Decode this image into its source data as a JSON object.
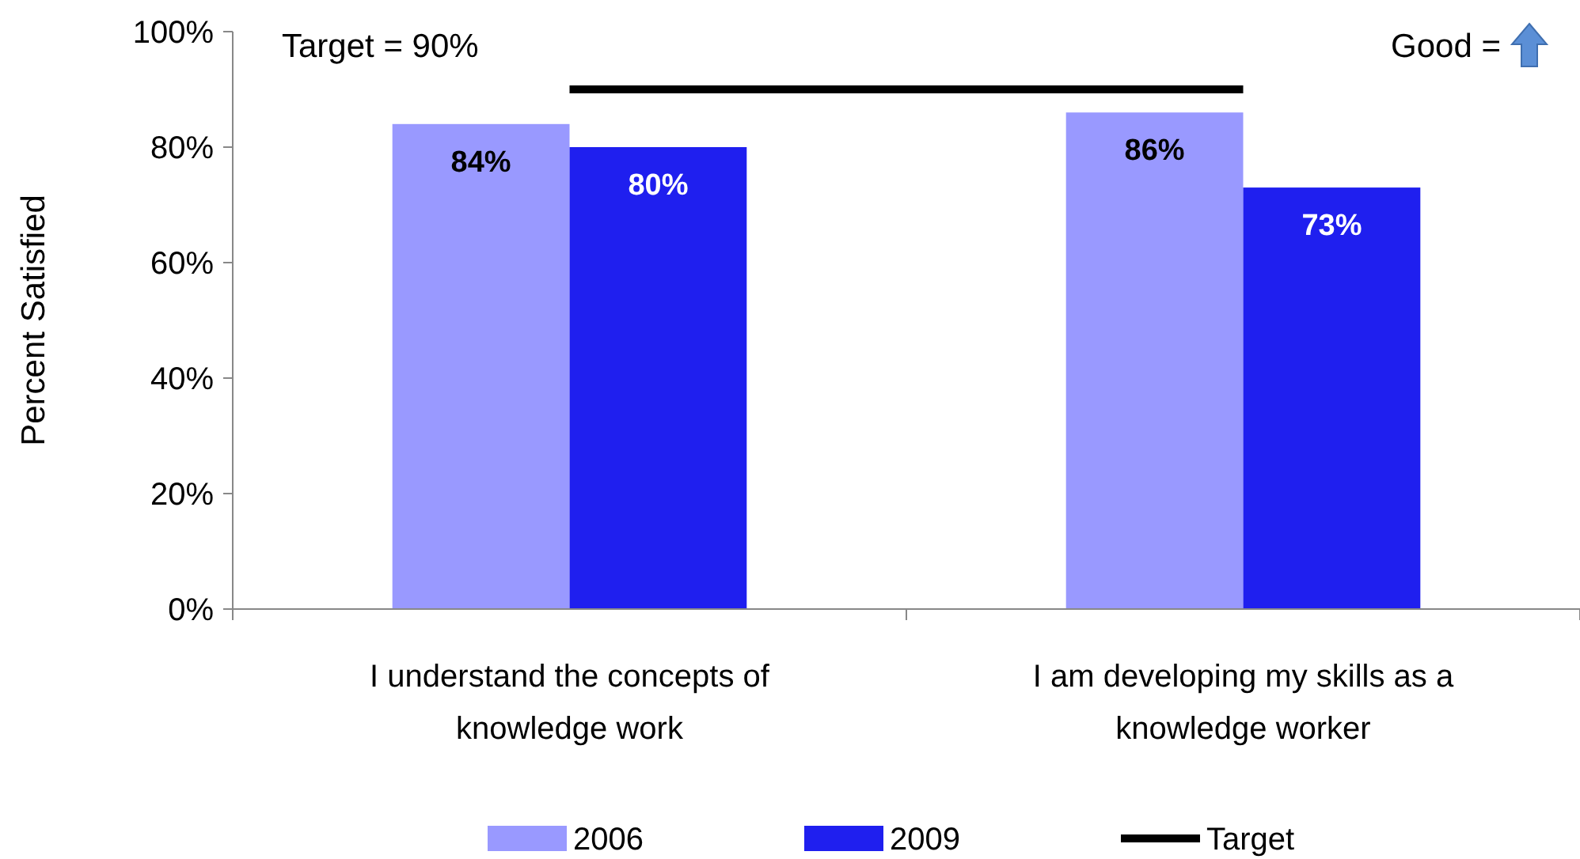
{
  "chart_data": {
    "type": "bar",
    "ylabel": "Percent Satisfied",
    "categories": [
      "I understand the concepts of knowledge work",
      "I am developing my skills as a knowledge worker"
    ],
    "series": [
      {
        "name": "2006",
        "color": "#9999ff",
        "values": [
          84,
          86
        ],
        "value_labels": [
          "84%",
          "86%"
        ]
      },
      {
        "name": "2009",
        "color": "#1f1fef",
        "values": [
          80,
          73
        ],
        "value_labels": [
          "80%",
          "73%"
        ]
      },
      {
        "name": "Target",
        "type": "line",
        "color": "#000000",
        "values": [
          90,
          90
        ]
      }
    ],
    "ylim": [
      0,
      100
    ],
    "yticks": [
      {
        "value": 0,
        "label": "0%"
      },
      {
        "value": 20,
        "label": "20%"
      },
      {
        "value": 40,
        "label": "40%"
      },
      {
        "value": 60,
        "label": "60%"
      },
      {
        "value": 80,
        "label": "80%"
      },
      {
        "value": 100,
        "label": "100%"
      }
    ],
    "annotations": [
      "Target = 90%",
      "Good ="
    ],
    "legend": "bottom",
    "grid": false
  }
}
